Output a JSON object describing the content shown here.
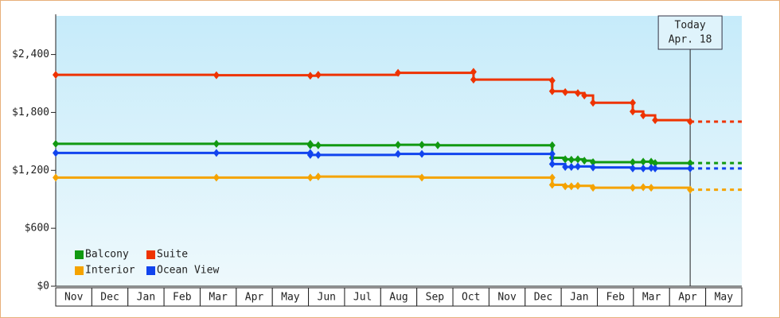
{
  "chart_data": {
    "type": "step-line",
    "categories": [
      "Nov",
      "Dec",
      "Jan",
      "Feb",
      "Mar",
      "Apr",
      "May",
      "Jun",
      "Jul",
      "Aug",
      "Sep",
      "Oct",
      "Nov",
      "Dec",
      "Jan",
      "Feb",
      "Mar",
      "Apr",
      "May"
    ],
    "xlim": [
      0,
      19
    ],
    "ylim": [
      0,
      2800
    ],
    "yticks": [
      {
        "value": 0,
        "label": "$0"
      },
      {
        "value": 600,
        "label": "$600"
      },
      {
        "value": 1200,
        "label": "$1,200"
      },
      {
        "value": 1800,
        "label": "$1,800"
      },
      {
        "value": 2400,
        "label": "$2,400"
      }
    ],
    "legend": "bottom-left",
    "annotation": {
      "x": 17.57,
      "lines": [
        "Today",
        "Apr. 18"
      ]
    },
    "series": [
      {
        "name": "Balcony",
        "color": "#119911",
        "x": [
          0,
          4.45,
          7.05,
          7.05,
          7.27,
          9.48,
          10.14,
          10.58,
          13.75,
          13.75,
          14.11,
          14.28,
          14.46,
          14.64,
          14.88,
          15.98,
          16.27,
          16.49,
          16.6,
          17.57
        ],
        "values": [
          1475,
          1475,
          1475,
          1460,
          1460,
          1465,
          1465,
          1460,
          1460,
          1330,
          1315,
          1310,
          1315,
          1300,
          1285,
          1285,
          1290,
          1290,
          1275,
          1275
        ]
      },
      {
        "name": "Suite",
        "color": "#ee3300",
        "x": [
          0,
          4.45,
          7.05,
          7.27,
          9.48,
          11.57,
          11.57,
          13.75,
          13.75,
          14.11,
          14.46,
          14.64,
          14.88,
          15.98,
          15.98,
          16.27,
          16.6,
          17.57
        ],
        "values": [
          2190,
          2185,
          2180,
          2190,
          2210,
          2220,
          2140,
          2130,
          2020,
          2010,
          2000,
          1975,
          1900,
          1900,
          1810,
          1770,
          1720,
          1705
        ]
      },
      {
        "name": "Interior",
        "color": "#f5a300",
        "x": [
          0,
          4.45,
          7.05,
          7.27,
          10.14,
          13.75,
          13.75,
          14.11,
          14.28,
          14.46,
          14.88,
          15.98,
          16.27,
          16.49,
          17.57
        ],
        "values": [
          1125,
          1125,
          1125,
          1135,
          1125,
          1125,
          1050,
          1035,
          1035,
          1040,
          1020,
          1020,
          1025,
          1020,
          1000
        ]
      },
      {
        "name": "Ocean View",
        "color": "#1144ee",
        "x": [
          0,
          4.45,
          7.05,
          7.05,
          7.27,
          9.48,
          10.14,
          13.75,
          13.75,
          14.11,
          14.28,
          14.46,
          14.88,
          15.98,
          16.27,
          16.49,
          16.6,
          17.57
        ],
        "values": [
          1380,
          1380,
          1380,
          1360,
          1360,
          1370,
          1370,
          1370,
          1265,
          1235,
          1235,
          1240,
          1230,
          1220,
          1220,
          1225,
          1220,
          1220
        ]
      }
    ]
  }
}
